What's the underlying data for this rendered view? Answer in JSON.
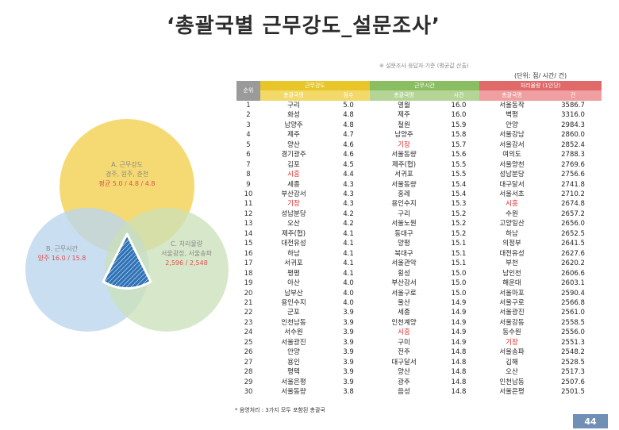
{
  "page": {
    "title": "‘총괄국별 근무강도_설문조사’",
    "subtitle": "※ 설문조사 응답자 기준 (평균값 산출)",
    "unit": "(단위: 점/ 시간/ 건)",
    "footnote": "* 음영처리 : 3가지 모두 포함된 총괄국",
    "page_number": "44"
  },
  "venn": {
    "yellow_title": "A. 근무강도",
    "yellow_line1": "경주, 원주, 춘천",
    "yellow_line2": "평균 5.0 / 4.8 / 4.8",
    "blue_title": "B. 근무시간",
    "blue_line1": "양주 16.0 / 15.8",
    "green_title": "C. 처리물량",
    "green_line1": "서울광장, 서울송파",
    "green_line2": "2,596 / 2,548"
  },
  "table": {
    "rank_header": "순위",
    "groups": [
      {
        "label": "근무강도",
        "sub_name": "총괄국명",
        "sub_value": "점수"
      },
      {
        "label": "근무시간",
        "sub_name": "총괄국명",
        "sub_value": "시간"
      },
      {
        "label": "처리물량 (1인당)",
        "sub_name": "총괄국명",
        "sub_value": "건"
      }
    ],
    "rows": [
      {
        "rank": "1",
        "a": "구리",
        "av": "5.0",
        "b": "영월",
        "bv": "16.0",
        "c": "서울동작",
        "cv": "3586.7"
      },
      {
        "rank": "2",
        "a": "화성",
        "av": "4.8",
        "b": "제주",
        "bv": "16.0",
        "c": "벽평",
        "cv": "3316.0"
      },
      {
        "rank": "3",
        "a": "남양주",
        "av": "4.8",
        "b": "철원",
        "bv": "15.9",
        "c": "안양",
        "cv": "2984.3"
      },
      {
        "rank": "4",
        "a": "제주",
        "av": "4.7",
        "b": "남양주",
        "bv": "15.8",
        "c": "서울강남",
        "cv": "2860.0"
      },
      {
        "rank": "5",
        "a": "양산",
        "av": "4.6",
        "b": "기장",
        "bv": "15.7",
        "c": "서울강서",
        "cv": "2852.4",
        "b_red": true
      },
      {
        "rank": "6",
        "a": "경기광주",
        "av": "4.6",
        "b": "서울동량",
        "bv": "15.6",
        "c": "여의도",
        "cv": "2788.3"
      },
      {
        "rank": "7",
        "a": "김포",
        "av": "4.5",
        "b": "제주(협)",
        "bv": "15.5",
        "c": "서울양천",
        "cv": "2769.6"
      },
      {
        "rank": "8",
        "a": "시흥",
        "av": "4.4",
        "b": "서귀포",
        "bv": "15.5",
        "c": "성남분당",
        "cv": "2756.6",
        "a_red": true
      },
      {
        "rank": "9",
        "a": "세종",
        "av": "4.3",
        "b": "서울동량",
        "bv": "15.4",
        "c": "대구달서",
        "cv": "2741.8"
      },
      {
        "rank": "10",
        "a": "부산강서",
        "av": "4.3",
        "b": "홍레",
        "bv": "15.4",
        "c": "서울서초",
        "cv": "2710.2"
      },
      {
        "rank": "11",
        "a": "기장",
        "av": "4.3",
        "b": "용인수지",
        "bv": "15.3",
        "c": "시흥",
        "cv": "2674.8",
        "a_red": true,
        "c_red": true
      },
      {
        "rank": "12",
        "a": "성남분당",
        "av": "4.2",
        "b": "구리",
        "bv": "15.2",
        "c": "수원",
        "cv": "2657.2"
      },
      {
        "rank": "13",
        "a": "오산",
        "av": "4.2",
        "b": "서울노원",
        "bv": "15.2",
        "c": "고양일산",
        "cv": "2656.0"
      },
      {
        "rank": "14",
        "a": "제주(협)",
        "av": "4.1",
        "b": "동대구",
        "bv": "15.2",
        "c": "하남",
        "cv": "2652.5"
      },
      {
        "rank": "15",
        "a": "대전유성",
        "av": "4.1",
        "b": "양평",
        "bv": "15.1",
        "c": "의정부",
        "cv": "2641.5"
      },
      {
        "rank": "16",
        "a": "하남",
        "av": "4.1",
        "b": "북대구",
        "bv": "15.1",
        "c": "대전유성",
        "cv": "2627.6"
      },
      {
        "rank": "17",
        "a": "서귀포",
        "av": "4.1",
        "b": "서울관악",
        "bv": "15.1",
        "c": "부천",
        "cv": "2620.2"
      },
      {
        "rank": "18",
        "a": "평평",
        "av": "4.1",
        "b": "횡성",
        "bv": "15.0",
        "c": "남인천",
        "cv": "2606.6"
      },
      {
        "rank": "19",
        "a": "아산",
        "av": "4.0",
        "b": "부산강서",
        "bv": "15.0",
        "c": "해운대",
        "cv": "2603.1"
      },
      {
        "rank": "20",
        "a": "남부산",
        "av": "4.0",
        "b": "서울구로",
        "bv": "15.0",
        "c": "서울마포",
        "cv": "2590.4"
      },
      {
        "rank": "21",
        "a": "용인수지",
        "av": "4.0",
        "b": "울산",
        "bv": "14.9",
        "c": "서울구로",
        "cv": "2566.8"
      },
      {
        "rank": "22",
        "a": "군포",
        "av": "3.9",
        "b": "세종",
        "bv": "14.9",
        "c": "서울광진",
        "cv": "2561.0"
      },
      {
        "rank": "23",
        "a": "인천남동",
        "av": "3.9",
        "b": "인천계양",
        "bv": "14.9",
        "c": "서울강동",
        "cv": "2558.5"
      },
      {
        "rank": "24",
        "a": "서수원",
        "av": "3.9",
        "b": "시흥",
        "bv": "14.9",
        "c": "동수원",
        "cv": "2556.0",
        "b_red": true
      },
      {
        "rank": "25",
        "a": "서울광진",
        "av": "3.9",
        "b": "구미",
        "bv": "14.9",
        "c": "기장",
        "cv": "2551.3",
        "c_red": true
      },
      {
        "rank": "26",
        "a": "안양",
        "av": "3.9",
        "b": "전주",
        "bv": "14.8",
        "c": "서울송파",
        "cv": "2548.2"
      },
      {
        "rank": "27",
        "a": "용인",
        "av": "3.9",
        "b": "대구달서",
        "bv": "14.8",
        "c": "김해",
        "cv": "2528.5"
      },
      {
        "rank": "28",
        "a": "평택",
        "av": "3.9",
        "b": "양산",
        "bv": "14.8",
        "c": "오산",
        "cv": "2517.3"
      },
      {
        "rank": "29",
        "a": "서울은평",
        "av": "3.9",
        "b": "광주",
        "bv": "14.8",
        "c": "인천남동",
        "cv": "2507.6"
      },
      {
        "rank": "30",
        "a": "서울동량",
        "av": "3.8",
        "b": "음성",
        "bv": "14.8",
        "c": "서울은평",
        "cv": "2501.5"
      }
    ]
  },
  "colors": {
    "yellow": "#e8c62a",
    "green": "#8bbd62",
    "red": "#e06a6a",
    "blue_circle": "#a9cbe8",
    "center": "#2f73b7",
    "highlight_text": "#e02020",
    "page_box": "#6f8fb5"
  }
}
